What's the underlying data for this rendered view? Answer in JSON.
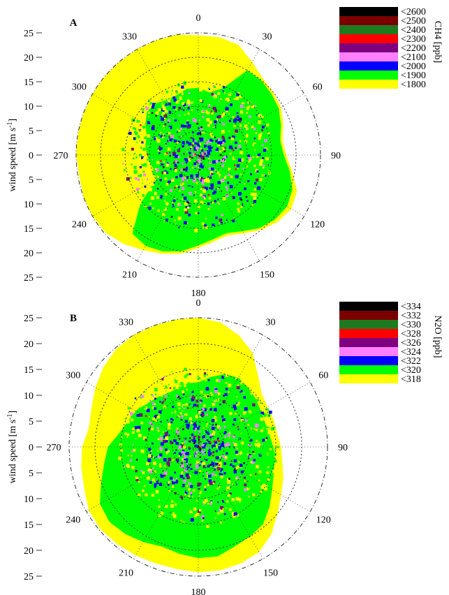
{
  "chart_data": [
    {
      "type": "heatmap",
      "panel": "A",
      "ylabel": "wind speed [m s",
      "ylabel_sup": "-1",
      "ylabel_end": "]",
      "angle_ticks": [
        "0",
        "30",
        "60",
        "90",
        "120",
        "150",
        "180",
        "210",
        "240",
        "270",
        "300",
        "330"
      ],
      "speed_ticks_upper": [
        "25",
        "20",
        "15",
        "10",
        "5",
        "0"
      ],
      "speed_ticks_lower": [
        "5",
        "10",
        "15",
        "20",
        "25"
      ],
      "colorbar_label": "CH4 [ppb]",
      "colorbar_levels": [
        "<2600",
        "<2500",
        "<2400",
        "<2300",
        "<2200",
        "<2100",
        "<2000",
        "<1900",
        "<1800"
      ],
      "colorbar_colors": [
        "#000000",
        "#7a0000",
        "#1f7a1f",
        "#ff0000",
        "#7f007f",
        "#ff80ff",
        "#0000ff",
        "#00ff00",
        "#ffff00"
      ],
      "rlim": [
        0,
        25
      ],
      "grid": true
    },
    {
      "type": "heatmap",
      "panel": "B",
      "ylabel": "wind speed [m s",
      "ylabel_sup": "-1",
      "ylabel_end": "]",
      "angle_ticks": [
        "0",
        "30",
        "60",
        "90",
        "120",
        "150",
        "180",
        "210",
        "240",
        "270",
        "300",
        "330"
      ],
      "speed_ticks_upper": [
        "25",
        "20",
        "15",
        "10",
        "5",
        "0"
      ],
      "speed_ticks_lower": [
        "5",
        "10",
        "15",
        "20",
        "25"
      ],
      "colorbar_label": "N2O [ppb]",
      "colorbar_levels": [
        "<334",
        "<332",
        "<330",
        "<328",
        "<326",
        "<324",
        "<322",
        "<320",
        "<318"
      ],
      "colorbar_colors": [
        "#000000",
        "#7a0000",
        "#1f7a1f",
        "#ff0000",
        "#7f007f",
        "#ff80ff",
        "#0000ff",
        "#00ff00",
        "#ffff00"
      ],
      "rlim": [
        0,
        25
      ],
      "grid": true
    }
  ]
}
